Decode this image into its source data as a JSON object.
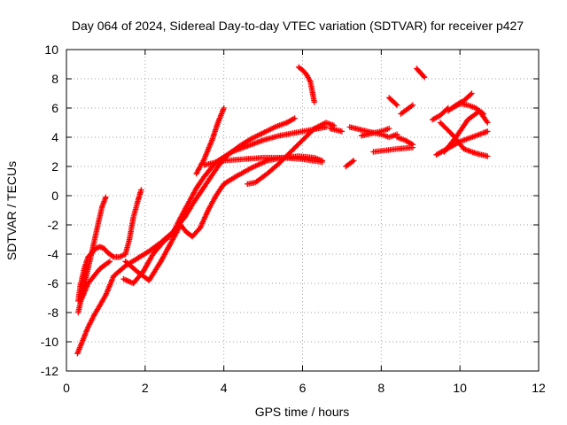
{
  "chart_data": {
    "type": "scatter",
    "title": "Day 064 of 2024, Sidereal Day-to-day VTEC variation (SDTVAR) for receiver p427",
    "xlabel": "GPS time / hours",
    "ylabel": "SDTVAR / TECUs",
    "xlim": [
      0,
      12
    ],
    "ylim": [
      -12,
      10
    ],
    "xticks": [
      0,
      2,
      4,
      6,
      8,
      10,
      12
    ],
    "yticks": [
      -12,
      -10,
      -8,
      -6,
      -4,
      -2,
      0,
      2,
      4,
      6,
      8,
      10
    ],
    "grid": true,
    "marker": "plus",
    "color": "#ff0000",
    "series": [
      {
        "x": [
          0.28,
          0.4,
          0.55,
          0.7,
          0.85,
          1.0,
          1.2,
          1.5,
          1.8,
          2.1,
          2.4,
          2.7,
          3.0,
          3.2,
          3.4,
          3.6,
          3.85,
          4.1,
          4.4,
          4.7,
          5.0,
          5.3,
          5.6,
          5.8
        ],
        "y": [
          -10.8,
          -10.0,
          -9.0,
          -8.2,
          -7.5,
          -6.8,
          -5.5,
          -4.8,
          -4.3,
          -3.8,
          -3.2,
          -2.5,
          -1.5,
          -0.6,
          0.2,
          1.0,
          2.0,
          2.8,
          3.4,
          3.9,
          4.3,
          4.7,
          5.0,
          5.3
        ]
      },
      {
        "x": [
          3.3,
          3.5,
          3.7,
          3.85,
          4.0
        ],
        "y": [
          1.5,
          2.5,
          3.8,
          5.0,
          6.0
        ]
      },
      {
        "x": [
          0.3,
          0.35,
          0.45,
          0.55,
          0.65,
          0.75,
          0.85,
          0.95,
          1.05,
          1.2,
          1.35,
          1.5
        ],
        "y": [
          -7.2,
          -6.2,
          -5.0,
          -4.2,
          -3.9,
          -3.6,
          -3.5,
          -3.6,
          -3.9,
          -4.2,
          -4.2,
          -4.0
        ]
      },
      {
        "x": [
          0.3,
          0.4,
          0.5,
          0.6,
          0.7,
          0.8,
          0.9,
          1.0
        ],
        "y": [
          -8.0,
          -6.8,
          -5.6,
          -4.4,
          -3.2,
          -2.0,
          -0.8,
          -0.1
        ]
      },
      {
        "x": [
          0.4,
          0.55,
          0.7,
          0.85,
          1.0,
          1.1
        ],
        "y": [
          -7.0,
          -6.0,
          -5.5,
          -5.0,
          -4.7,
          -4.5
        ]
      },
      {
        "x": [
          1.5,
          1.6,
          1.7,
          1.8,
          1.9
        ],
        "y": [
          -4.0,
          -3.0,
          -1.5,
          -0.5,
          0.4
        ]
      },
      {
        "x": [
          1.45,
          1.7,
          1.95,
          2.2,
          2.45,
          2.7,
          2.9,
          3.1,
          3.3,
          3.5,
          3.8,
          4.2,
          4.6,
          5.0,
          5.4,
          5.8,
          6.2,
          6.6
        ],
        "y": [
          -5.7,
          -6.0,
          -5.2,
          -4.0,
          -3.2,
          -2.6,
          -1.5,
          -0.5,
          0.5,
          1.3,
          2.3,
          3.0,
          3.4,
          3.8,
          4.1,
          4.3,
          4.5,
          4.7
        ]
      },
      {
        "x": [
          1.5,
          1.8,
          2.1,
          2.4,
          2.7,
          2.9,
          3.05,
          3.2,
          3.4,
          3.6,
          3.8,
          4.0,
          4.3,
          4.7,
          5.1,
          5.5,
          5.9,
          6.3,
          6.5
        ],
        "y": [
          -4.5,
          -5.2,
          -5.8,
          -4.5,
          -3.0,
          -2.0,
          -2.5,
          -2.8,
          -2.2,
          -1.0,
          0.0,
          0.8,
          1.3,
          1.9,
          2.4,
          2.6,
          2.7,
          2.6,
          2.4
        ]
      },
      {
        "x": [
          3.5,
          4.0,
          4.5,
          5.0,
          5.5,
          6.0,
          6.5
        ],
        "y": [
          2.1,
          2.4,
          2.5,
          2.6,
          2.6,
          2.5,
          2.3
        ]
      },
      {
        "x": [
          4.6,
          4.8,
          5.1,
          5.4,
          5.7,
          6.0,
          6.3,
          6.6,
          6.8
        ],
        "y": [
          0.8,
          0.9,
          1.5,
          2.2,
          3.0,
          3.8,
          4.6,
          5.0,
          4.8
        ]
      },
      {
        "x": [
          5.9,
          6.0,
          6.1,
          6.2,
          6.3
        ],
        "y": [
          8.8,
          8.6,
          8.3,
          7.8,
          6.4
        ]
      },
      {
        "x": [
          6.7,
          7.0
        ],
        "y": [
          4.6,
          4.4
        ]
      },
      {
        "x": [
          7.1,
          7.3
        ],
        "y": [
          2.0,
          2.4
        ]
      },
      {
        "x": [
          7.2,
          7.5,
          7.8,
          8.0,
          8.2
        ],
        "y": [
          4.7,
          4.5,
          4.3,
          4.4,
          4.6
        ]
      },
      {
        "x": [
          7.5,
          7.8,
          8.0,
          8.2,
          8.4
        ],
        "y": [
          4.1,
          4.3,
          4.2,
          4.0,
          4.2
        ]
      },
      {
        "x": [
          7.8,
          8.1,
          8.4,
          8.8
        ],
        "y": [
          3.0,
          3.1,
          3.2,
          3.3
        ]
      },
      {
        "x": [
          8.2,
          8.4
        ],
        "y": [
          6.7,
          6.2
        ]
      },
      {
        "x": [
          8.4,
          8.6,
          8.8
        ],
        "y": [
          4.0,
          3.8,
          3.5
        ]
      },
      {
        "x": [
          8.5,
          8.8
        ],
        "y": [
          5.6,
          6.2
        ]
      },
      {
        "x": [
          8.9,
          9.0,
          9.1
        ],
        "y": [
          8.7,
          8.4,
          8.1
        ]
      },
      {
        "x": [
          9.3,
          9.5,
          9.7
        ],
        "y": [
          5.2,
          5.5,
          6.0
        ]
      },
      {
        "x": [
          9.4,
          9.6,
          9.8,
          10.0,
          10.2,
          10.4,
          10.6,
          10.7
        ],
        "y": [
          2.8,
          3.1,
          3.4,
          3.7,
          3.9,
          4.1,
          4.3,
          4.4
        ]
      },
      {
        "x": [
          9.5,
          9.8,
          10.1,
          10.4,
          10.7
        ],
        "y": [
          5.0,
          4.2,
          3.2,
          2.9,
          2.7
        ]
      },
      {
        "x": [
          9.6,
          9.9,
          10.2,
          10.5,
          10.7
        ],
        "y": [
          3.0,
          4.0,
          5.2,
          5.8,
          5.0
        ]
      },
      {
        "x": [
          9.7,
          9.9,
          10.1,
          10.3
        ],
        "y": [
          5.8,
          6.2,
          6.5,
          7.0
        ]
      },
      {
        "x": [
          9.8,
          10.0,
          10.2,
          10.4,
          10.6
        ],
        "y": [
          6.0,
          6.3,
          6.2,
          6.0,
          5.6
        ]
      }
    ]
  }
}
